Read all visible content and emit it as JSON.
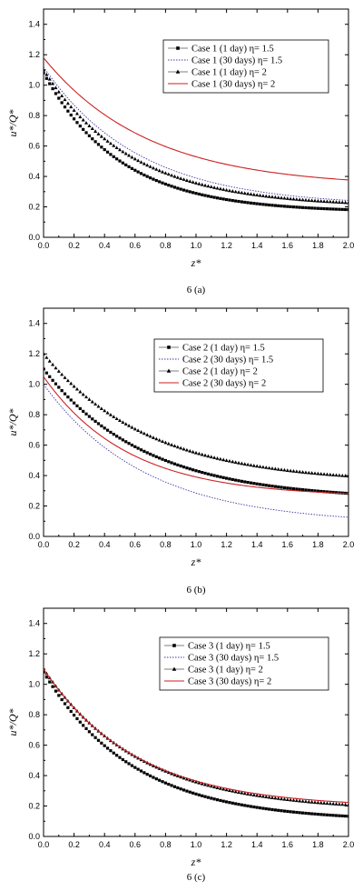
{
  "chart_data": [
    {
      "type": "line",
      "caption": "6 (a)",
      "xlabel": "z*",
      "ylabel": "u*/Q*",
      "xlim": [
        0,
        2.0
      ],
      "ylim": [
        0,
        1.5
      ],
      "xticks": [
        "0.0",
        "0.2",
        "0.4",
        "0.6",
        "0.8",
        "1.0",
        "1.2",
        "1.4",
        "1.6",
        "1.8",
        "2.0"
      ],
      "yticks": [
        "0.0",
        "0.2",
        "0.4",
        "0.6",
        "0.8",
        "1.0",
        "1.2",
        "1.4"
      ],
      "legend_position": "top-right",
      "series": [
        {
          "name": "Case 1 (1 day) η= 1.5",
          "style": "square-markers",
          "color": "#000000",
          "y0": 1.08,
          "yinf": 0.165,
          "k": 2.0
        },
        {
          "name": "Case 1 (30 days) η= 1.5",
          "style": "dotted",
          "color": "#3a3aa8",
          "y0": 1.12,
          "yinf": 0.205,
          "k": 1.6
        },
        {
          "name": "Case 1 (1 day) η= 2",
          "style": "triangle-markers",
          "color": "#000000",
          "y0": 1.1,
          "yinf": 0.2,
          "k": 1.75
        },
        {
          "name": "Case 1 (30 days) η= 2",
          "style": "solid",
          "color": "#cc2222",
          "y0": 1.18,
          "yinf": 0.33,
          "k": 1.45
        }
      ]
    },
    {
      "type": "line",
      "caption": "6 (b)",
      "xlabel": "z*",
      "ylabel": "u*/Q*",
      "xlim": [
        0,
        2.0
      ],
      "ylim": [
        0,
        1.5
      ],
      "xticks": [
        "0.0",
        "0.2",
        "0.4",
        "0.6",
        "0.8",
        "1.0",
        "1.2",
        "1.4",
        "1.6",
        "1.8",
        "2.0"
      ],
      "yticks": [
        "0.0",
        "0.2",
        "0.4",
        "0.6",
        "0.8",
        "1.0",
        "1.2",
        "1.4"
      ],
      "legend_position": "top-right",
      "series": [
        {
          "name": "Case 2 (1 day) η= 1.5",
          "style": "square-markers",
          "color": "#000000",
          "y0": 1.1,
          "yinf": 0.24,
          "k": 1.5
        },
        {
          "name": "Case 2 (30 days) η= 1.5",
          "style": "dotted",
          "color": "#3a3aa8",
          "y0": 1.0,
          "yinf": 0.08,
          "k": 1.5
        },
        {
          "name": "Case 2 (1 day) η= 2",
          "style": "triangle-markers",
          "color": "#000000",
          "y0": 1.2,
          "yinf": 0.35,
          "k": 1.45
        },
        {
          "name": "Case 2 (30 days) η= 2",
          "style": "solid",
          "color": "#cc2222",
          "y0": 1.05,
          "yinf": 0.26,
          "k": 1.8
        }
      ]
    },
    {
      "type": "line",
      "caption": "6 (c)",
      "xlabel": "z*",
      "ylabel": "u*/Q*",
      "xlim": [
        0,
        2.0
      ],
      "ylim": [
        0,
        1.5
      ],
      "xticks": [
        "0.0",
        "0.2",
        "0.4",
        "0.6",
        "0.8",
        "1.0",
        "1.2",
        "1.4",
        "1.6",
        "1.8",
        "2.0"
      ],
      "yticks": [
        "0.0",
        "0.2",
        "0.4",
        "0.6",
        "0.8",
        "1.0",
        "1.2",
        "1.4"
      ],
      "legend_position": "top-right",
      "series": [
        {
          "name": "Case 3 (1 day) η= 1.5",
          "style": "square-markers",
          "color": "#000000",
          "y0": 1.08,
          "yinf": 0.1,
          "k": 1.7
        },
        {
          "name": "Case 3 (30 days) η= 1.5",
          "style": "dotted",
          "color": "#3a3aa8",
          "y0": 1.1,
          "yinf": 0.19,
          "k": 1.65
        },
        {
          "name": "Case 3 (1 day) η= 2",
          "style": "triangle-markers",
          "color": "#000000",
          "y0": 1.1,
          "yinf": 0.17,
          "k": 1.6
        },
        {
          "name": "Case 3 (30 days) η= 2",
          "style": "solid",
          "color": "#cc2222",
          "y0": 1.1,
          "yinf": 0.19,
          "k": 1.65
        }
      ]
    }
  ]
}
